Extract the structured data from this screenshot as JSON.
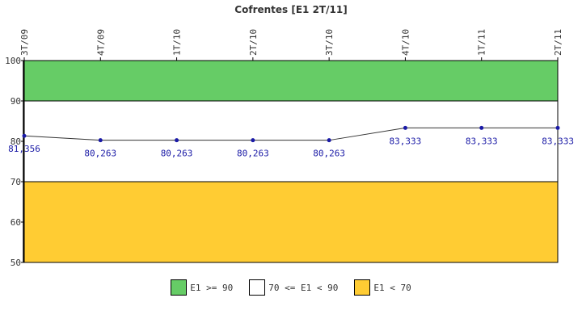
{
  "chart_data": {
    "type": "line",
    "title": "Cofrentes [E1 2T/11]",
    "categories": [
      "3T/09",
      "4T/09",
      "1T/10",
      "2T/10",
      "3T/10",
      "4T/10",
      "1T/11",
      "2T/11"
    ],
    "series": [
      {
        "values": [
          81.356,
          80.263,
          80.263,
          80.263,
          80.263,
          83.333,
          83.333,
          83.333
        ],
        "labels": [
          "81,356",
          "80,263",
          "80,263",
          "80,263",
          "80,263",
          "83,333",
          "83,333",
          "83,333"
        ],
        "color": "#1a1aa6"
      }
    ],
    "ylim": [
      50,
      100
    ],
    "yticks": [
      50,
      60,
      70,
      80,
      90,
      100
    ],
    "x_tick_position": "top",
    "bands": [
      {
        "from": 90,
        "to": 100,
        "color": "#66cc66",
        "label": "E1 >= 90"
      },
      {
        "from": 70,
        "to": 90,
        "color": "#ffffff",
        "label": "70 <= E1 < 90"
      },
      {
        "from": 50,
        "to": 70,
        "color": "#ffcc33",
        "label": "E1 < 70"
      }
    ],
    "legend_position": "bottom"
  }
}
